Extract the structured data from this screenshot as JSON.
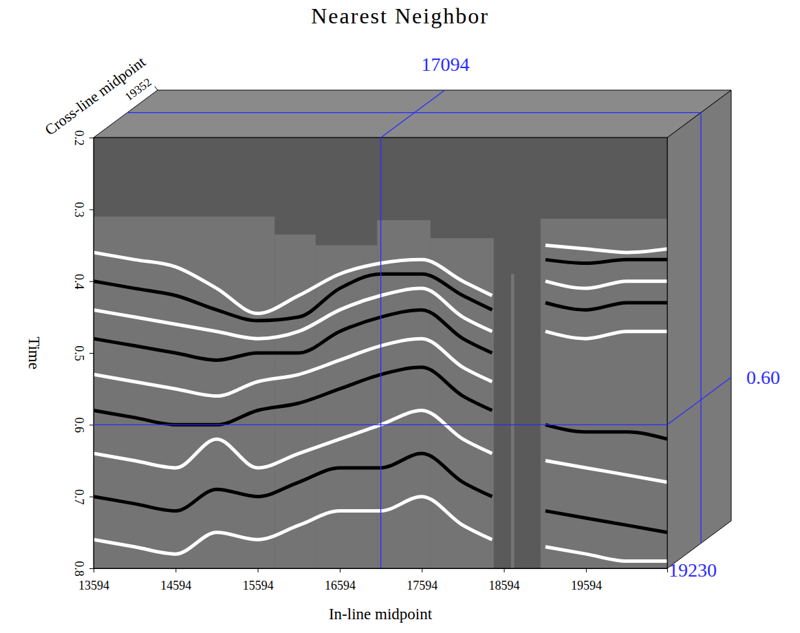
{
  "chart_data": {
    "type": "seismic_cube",
    "title": "Nearest Neighbor",
    "x_label": "In-line midpoint",
    "y_label": "Time",
    "z_label": "Cross-line midpoint",
    "xlim": [
      13594,
      20584
    ],
    "xticks": [
      13594,
      14594,
      15594,
      16594,
      17594,
      18594,
      19594
    ],
    "ylim": [
      0.2,
      0.8
    ],
    "yticks": [
      0.2,
      0.3,
      0.4,
      0.5,
      0.6,
      0.7,
      0.8
    ],
    "zlim": [
      19094,
      19352
    ],
    "zticks": [
      19352
    ],
    "crosshair": {
      "x": 17094,
      "y": {
        "value": 0.6,
        "label": "0.60"
      },
      "z": 19230
    },
    "data_regions": [
      {
        "x": [
          13594,
          15800
        ],
        "top": 0.31
      },
      {
        "x": [
          15800,
          16300
        ],
        "top": 0.335
      },
      {
        "x": [
          16300,
          17050
        ],
        "top": 0.35
      },
      {
        "x": [
          17050,
          17700
        ],
        "top": 0.315
      },
      {
        "x": [
          17700,
          18470
        ],
        "top": 0.34
      },
      {
        "x": [
          18680,
          18720
        ],
        "top": 0.39
      },
      {
        "x": [
          19040,
          20584
        ],
        "top": 0.313
      }
    ],
    "x": [
      13594,
      14094,
      14594,
      15094,
      15594,
      16094,
      16594,
      17094,
      17594,
      18094,
      18450,
      18700,
      19100,
      19594,
      20094,
      20584
    ],
    "series": [
      {
        "color": "#ffffff",
        "values": [
          0.36,
          0.37,
          0.38,
          0.41,
          0.445,
          0.42,
          0.39,
          0.375,
          0.37,
          0.4,
          0.42,
          null,
          0.35,
          0.355,
          0.36,
          0.355
        ]
      },
      {
        "color": "#000000",
        "values": [
          0.4,
          0.41,
          0.42,
          0.44,
          0.455,
          0.45,
          0.41,
          0.39,
          0.39,
          0.42,
          0.44,
          null,
          0.37,
          0.375,
          0.37,
          0.37
        ]
      },
      {
        "color": "#ffffff",
        "values": [
          0.44,
          0.45,
          0.46,
          0.47,
          0.48,
          0.47,
          0.44,
          0.42,
          0.41,
          0.45,
          0.47,
          null,
          0.4,
          0.41,
          0.4,
          0.4
        ]
      },
      {
        "color": "#000000",
        "values": [
          0.48,
          0.49,
          0.5,
          0.51,
          0.5,
          0.5,
          0.47,
          0.45,
          0.44,
          0.48,
          0.5,
          null,
          0.43,
          0.44,
          0.43,
          0.43
        ]
      },
      {
        "color": "#ffffff",
        "values": [
          0.53,
          0.54,
          0.55,
          0.56,
          0.54,
          0.53,
          0.51,
          0.49,
          0.48,
          0.52,
          0.54,
          null,
          0.47,
          0.48,
          0.47,
          0.47
        ]
      },
      {
        "color": "#000000",
        "values": [
          0.58,
          0.59,
          0.6,
          0.6,
          0.58,
          0.57,
          0.55,
          0.53,
          0.52,
          0.56,
          0.58,
          null,
          0.6,
          0.61,
          0.61,
          0.62
        ]
      },
      {
        "color": "#ffffff",
        "values": [
          0.64,
          0.65,
          0.66,
          0.62,
          0.66,
          0.64,
          0.62,
          0.6,
          0.58,
          0.62,
          0.64,
          null,
          0.65,
          0.66,
          0.67,
          0.68
        ]
      },
      {
        "color": "#000000",
        "values": [
          0.7,
          0.71,
          0.72,
          0.69,
          0.7,
          0.68,
          0.66,
          0.66,
          0.64,
          0.68,
          0.7,
          null,
          0.72,
          0.73,
          0.74,
          0.75
        ]
      },
      {
        "color": "#ffffff",
        "values": [
          0.76,
          0.77,
          0.78,
          0.75,
          0.76,
          0.74,
          0.72,
          0.72,
          0.7,
          0.74,
          0.76,
          null,
          0.77,
          0.78,
          0.79,
          0.79
        ]
      }
    ]
  }
}
